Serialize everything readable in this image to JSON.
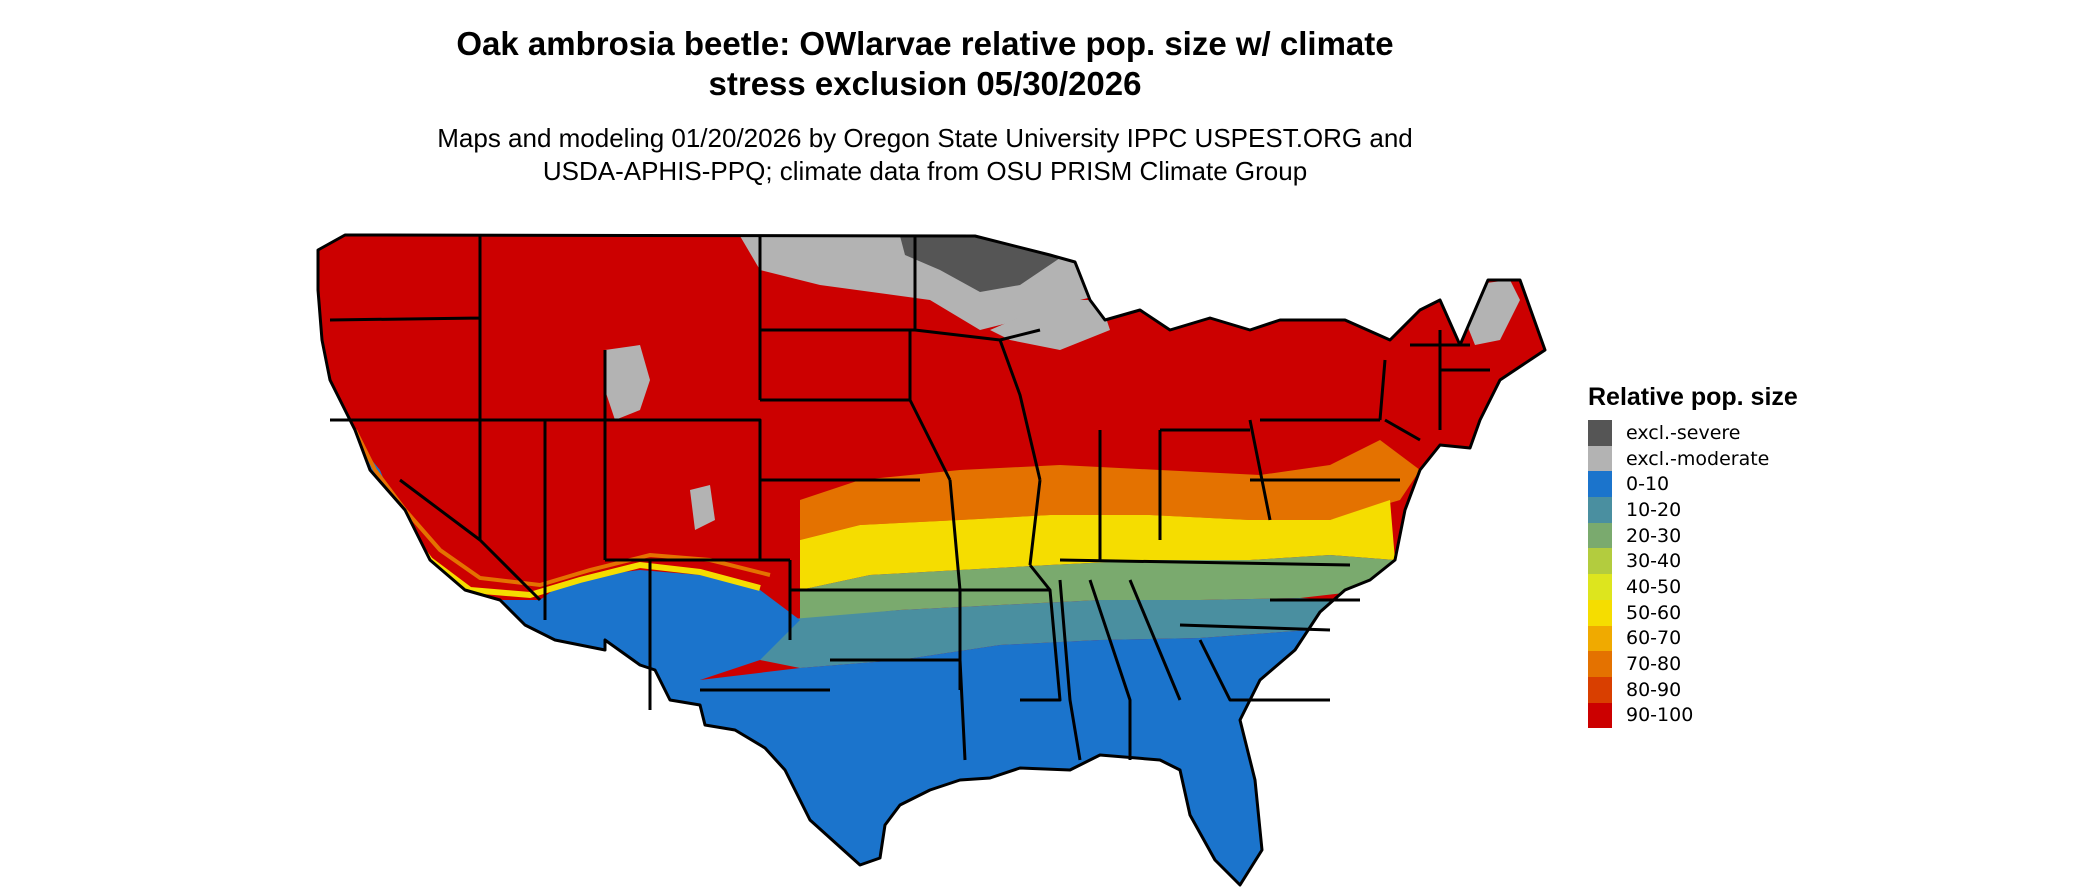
{
  "title_line1": "Oak ambrosia beetle: OWlarvae relative pop. size w/ climate",
  "title_line2": "stress exclusion 05/30/2026",
  "subtitle_line1": "Maps and modeling 01/20/2026 by Oregon State University IPPC USPEST.ORG and",
  "subtitle_line2": "USDA-APHIS-PPQ; climate data from OSU PRISM Climate Group",
  "legend": {
    "title": "Relative pop. size",
    "items": [
      {
        "label": "excl.-severe",
        "color": "#555555"
      },
      {
        "label": "excl.-moderate",
        "color": "#b3b3b3"
      },
      {
        "label": "0-10",
        "color": "#1b74cc"
      },
      {
        "label": "10-20",
        "color": "#4a8fa0"
      },
      {
        "label": "20-30",
        "color": "#7aaa6e"
      },
      {
        "label": "30-40",
        "color": "#b3cc3e"
      },
      {
        "label": "40-50",
        "color": "#dde51e"
      },
      {
        "label": "50-60",
        "color": "#f5dd00"
      },
      {
        "label": "60-70",
        "color": "#f0aa00"
      },
      {
        "label": "70-80",
        "color": "#e47200"
      },
      {
        "label": "80-90",
        "color": "#d93f00"
      },
      {
        "label": "90-100",
        "color": "#cc0000"
      }
    ]
  }
}
